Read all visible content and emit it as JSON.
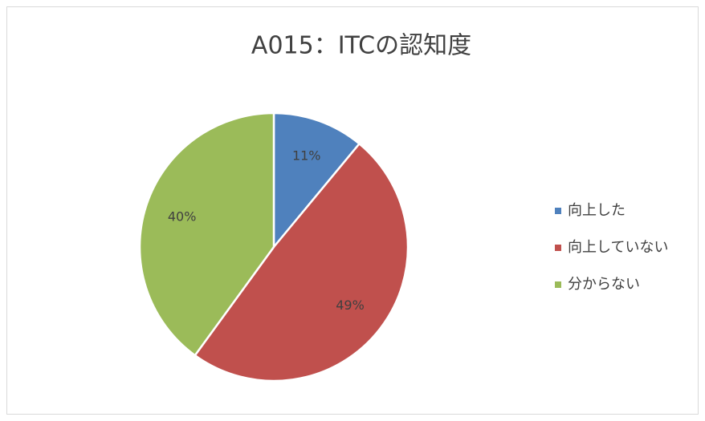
{
  "chart_data": {
    "type": "pie",
    "title": "A015：ITCの認知度",
    "categories": [
      "向上した",
      "向上していない",
      "分からない"
    ],
    "values": [
      11,
      49,
      40
    ],
    "value_labels": [
      "11%",
      "49%",
      "40%"
    ],
    "colors": [
      "#4f81bd",
      "#c0504d",
      "#9bbb59"
    ],
    "legend": "right"
  }
}
